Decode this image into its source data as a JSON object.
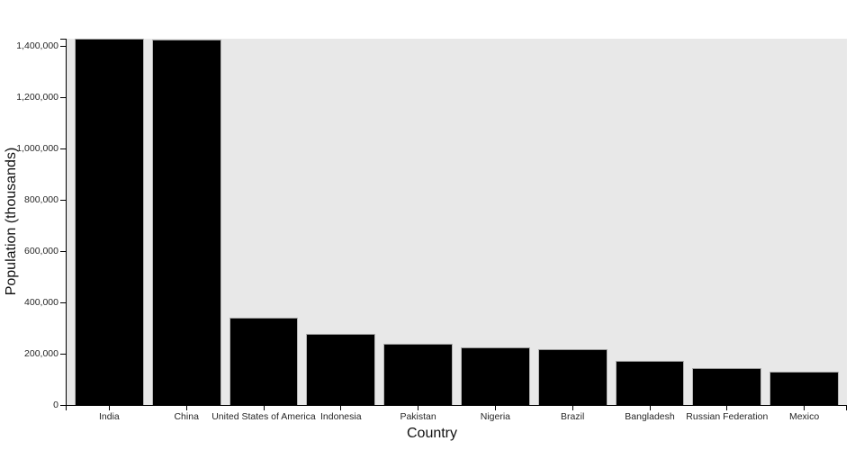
{
  "chart_data": {
    "type": "bar",
    "title": "",
    "xlabel": "Country",
    "ylabel": "Population (thousands)",
    "categories": [
      "India",
      "China",
      "United States of America",
      "Indonesia",
      "Pakistan",
      "Nigeria",
      "Brazil",
      "Bangladesh",
      "Russian Federation",
      "Mexico"
    ],
    "values": [
      1428628,
      1425671,
      339997,
      277534,
      240486,
      223805,
      216422,
      172954,
      144444,
      128456
    ],
    "ylim": [
      0,
      1428628
    ],
    "yticks": [
      0,
      200000,
      400000,
      600000,
      800000,
      1000000,
      1200000,
      1400000
    ],
    "ytick_labels": [
      "0",
      "200,000",
      "400,000",
      "600,000",
      "800,000",
      "1,000,000",
      "1,200,000",
      "1,400,000"
    ],
    "grid": false,
    "legend": false,
    "bar_color": "#000000",
    "plot_bg_color": "#e8e8e8",
    "axis_color": "#000000"
  }
}
